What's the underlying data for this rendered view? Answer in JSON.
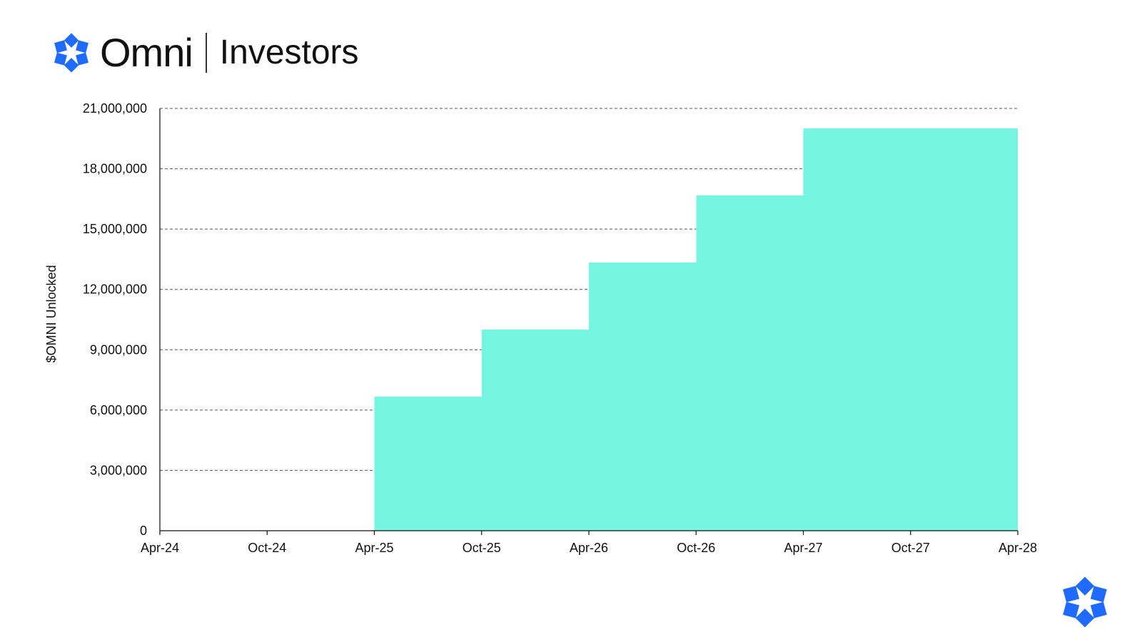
{
  "header": {
    "brand": "Omni",
    "section": "Investors"
  },
  "icons": {
    "logo": "omni-logo-icon",
    "corner": "omni-mark-icon"
  },
  "colors": {
    "brand_blue": "#1f6bff",
    "fill": "#76f5e3",
    "grid": "#555555",
    "axis": "#111111"
  },
  "chart_data": {
    "type": "area",
    "step": true,
    "title": "",
    "xlabel": "",
    "ylabel": "$OMNI Unlocked",
    "x_ticks": [
      "Apr-24",
      "Oct-24",
      "Apr-25",
      "Oct-25",
      "Apr-26",
      "Oct-26",
      "Apr-27",
      "Oct-27",
      "Apr-28"
    ],
    "y_ticks": [
      "0",
      "3,000,000",
      "6,000,000",
      "9,000,000",
      "12,000,000",
      "15,000,000",
      "18,000,000",
      "21,000,000"
    ],
    "xlim": [
      "2024-04",
      "2028-04"
    ],
    "ylim": [
      0,
      21000000
    ],
    "grid": "horizontal-dashed",
    "series": [
      {
        "x": [
          "2024-04",
          "2025-04",
          "2025-10",
          "2026-04",
          "2026-10",
          "2027-04",
          "2028-04"
        ],
        "values": [
          0,
          6670000,
          10000000,
          13330000,
          16670000,
          20000000,
          20000000
        ]
      }
    ]
  }
}
